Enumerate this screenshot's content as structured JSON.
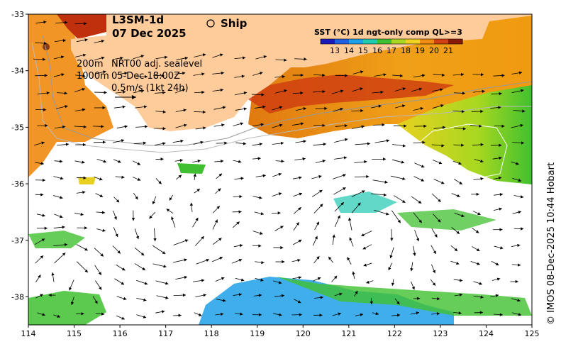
{
  "header": {
    "product": "L3SM-1d",
    "date": "07 Dec 2025",
    "ship_label": "Ship"
  },
  "notes": {
    "contour_200": "200m",
    "contour_1000": "1000m",
    "sealevel": "NRT00 adj. sealevel",
    "sealevel_time": "05-Dec 18:00Z",
    "vector_scale": "0.5m/s (1kt 24h)"
  },
  "colorbar": {
    "title": "SST (°C) 1d ngt-only comp QL>=3",
    "ticks": [
      "13",
      "14",
      "15",
      "16",
      "17",
      "18",
      "19",
      "20",
      "21"
    ],
    "colors": [
      "#1a1ab8",
      "#1f5fe0",
      "#1ea0e6",
      "#20c9b0",
      "#40c030",
      "#a8d820",
      "#f0d020",
      "#f08a10",
      "#d04010",
      "#8a1a08"
    ]
  },
  "axes": {
    "x_ticks": [
      "114",
      "115",
      "116",
      "117",
      "118",
      "119",
      "120",
      "121",
      "122",
      "123",
      "124",
      "125"
    ],
    "y_ticks": [
      "-33",
      "-34",
      "-35",
      "-36",
      "-37",
      "-38"
    ]
  },
  "credit": "© IMOS 08-Dec-2025 10:44 Hobart",
  "colors": {
    "land": "#fecb9a",
    "water": "#ffffff",
    "arrow": "#000000"
  }
}
